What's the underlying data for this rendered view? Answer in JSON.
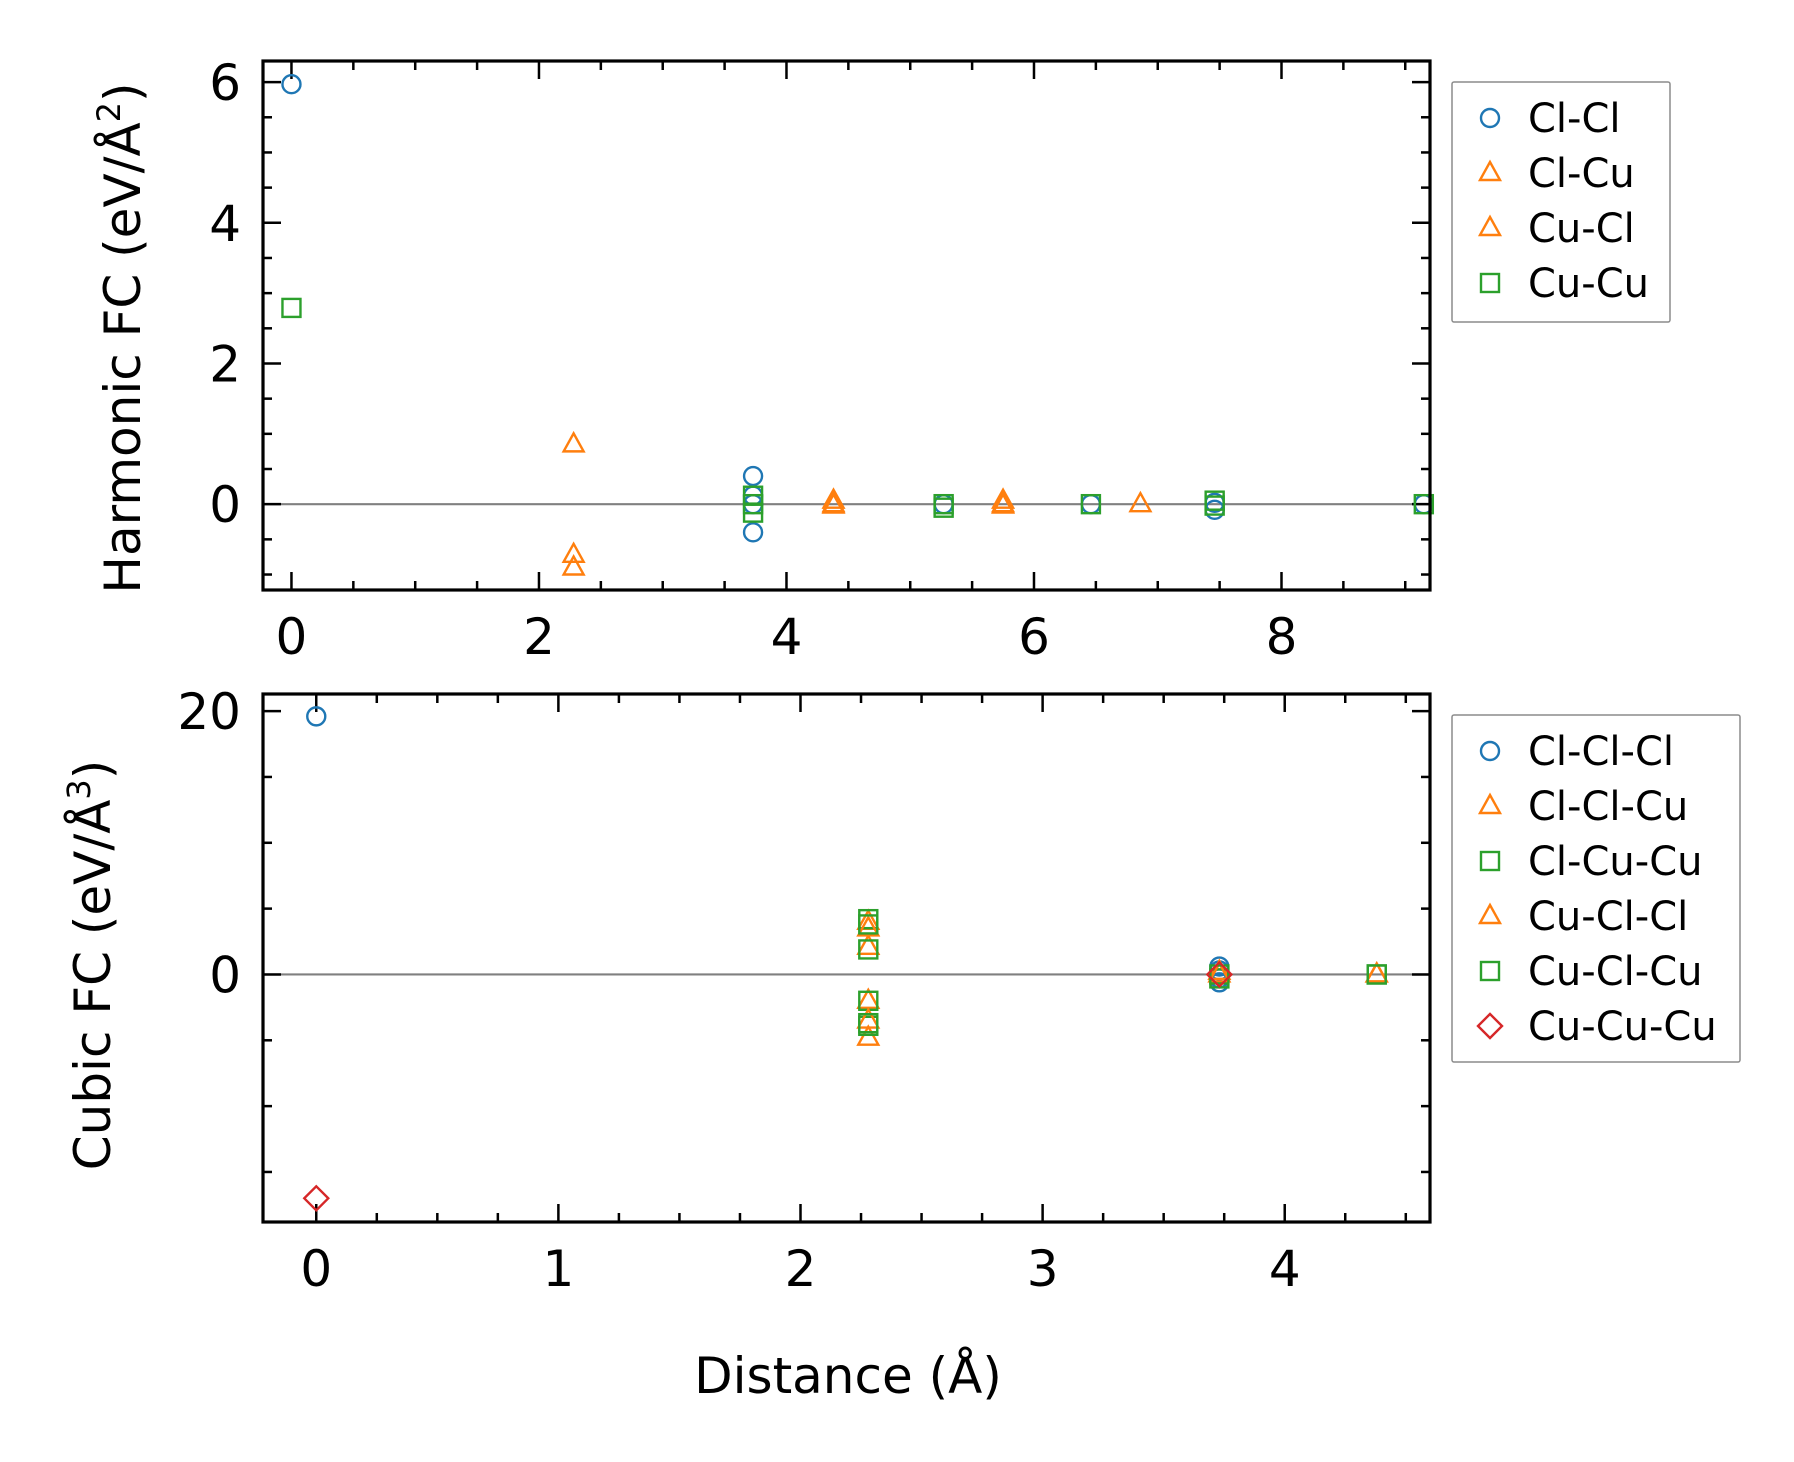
{
  "chart_data": [
    {
      "type": "scatter",
      "panel": "top",
      "title": "",
      "xlabel": "",
      "ylabel": "Harmonic FC (eV/Å²)",
      "ylabel_main": "Harmonic FC (eV/Å",
      "ylabel_sup": "2",
      "ylabel_end": ")",
      "xlim": [
        -0.23,
        9.2
      ],
      "ylim": [
        -1.22,
        6.3
      ],
      "xticks": [
        0,
        2,
        4,
        6,
        8
      ],
      "xtick_labels": [
        "0",
        "2",
        "4",
        "6",
        "8"
      ],
      "xminor_step": 0.5,
      "yticks": [
        0,
        2,
        4,
        6
      ],
      "ytick_labels": [
        "0",
        "2",
        "4",
        "6"
      ],
      "yminor_step": 0.5,
      "zero_line": true,
      "legend_position": "outside upper-right",
      "series": [
        {
          "name": "Cl-Cl",
          "marker": "circle",
          "color": "#1f77b4",
          "x": [
            0,
            3.73,
            3.73,
            3.73,
            3.73,
            5.27,
            6.46,
            7.46,
            7.46,
            9.15
          ],
          "y": [
            5.97,
            0.4,
            0.12,
            0.0,
            -0.4,
            0.0,
            0.0,
            0.02,
            -0.08,
            0.0
          ]
        },
        {
          "name": "Cl-Cu",
          "marker": "triangle",
          "color": "#ff7f0e",
          "x": [
            2.28,
            2.28,
            4.38,
            4.38,
            5.75,
            5.75,
            6.86
          ],
          "y": [
            0.85,
            -0.72,
            0.05,
            -0.02,
            0.05,
            -0.02,
            0.0
          ]
        },
        {
          "name": "Cu-Cl",
          "marker": "triangle",
          "color": "#ff7f0e",
          "x": [
            2.28,
            4.38,
            5.75
          ],
          "y": [
            -0.9,
            0.0,
            0.0
          ]
        },
        {
          "name": "Cu-Cu",
          "marker": "square",
          "color": "#2ca02c",
          "x": [
            0,
            3.73,
            3.73,
            3.73,
            5.27,
            5.27,
            6.46,
            7.46,
            7.46,
            9.15
          ],
          "y": [
            2.79,
            0.12,
            0.0,
            -0.12,
            0.0,
            -0.05,
            0.0,
            0.05,
            -0.02,
            0.0
          ]
        }
      ]
    },
    {
      "type": "scatter",
      "panel": "bottom",
      "title": "",
      "xlabel": "Distance (Å)",
      "ylabel": "Cubic FC (eV/Å³)",
      "ylabel_main": "Cubic FC (eV/Å",
      "ylabel_sup": "3",
      "ylabel_end": ")",
      "xlim": [
        -0.22,
        4.6
      ],
      "ylim": [
        -18.8,
        21.3
      ],
      "xticks": [
        0,
        1,
        2,
        3,
        4
      ],
      "xtick_labels": [
        "0",
        "1",
        "2",
        "3",
        "4"
      ],
      "xminor_step": 0.25,
      "yticks": [
        0,
        20
      ],
      "ytick_labels": [
        "0",
        "20"
      ],
      "yminor_step": 5,
      "zero_line": true,
      "legend_position": "outside upper-right",
      "series": [
        {
          "name": "Cl-Cl-Cl",
          "marker": "circle",
          "color": "#1f77b4",
          "x": [
            0,
            3.73,
            3.73,
            3.73,
            3.73
          ],
          "y": [
            19.6,
            0.6,
            0.3,
            -0.3,
            -0.6
          ]
        },
        {
          "name": "Cl-Cl-Cu",
          "marker": "triangle",
          "color": "#ff7f0e",
          "x": [
            2.28,
            2.28,
            2.28,
            2.28,
            3.73,
            4.38
          ],
          "y": [
            4.0,
            2.1,
            -2.0,
            -4.8,
            0.2,
            0.0
          ]
        },
        {
          "name": "Cl-Cu-Cu",
          "marker": "square",
          "color": "#2ca02c",
          "x": [
            2.28,
            2.28,
            2.28,
            2.28,
            3.73,
            4.38
          ],
          "y": [
            4.2,
            1.9,
            -2.0,
            -3.9,
            -0.3,
            0.0
          ]
        },
        {
          "name": "Cu-Cl-Cl",
          "marker": "triangle",
          "color": "#ff7f0e",
          "x": [
            2.28,
            2.28,
            3.73,
            4.38
          ],
          "y": [
            3.5,
            -3.5,
            0.0,
            0.0
          ]
        },
        {
          "name": "Cu-Cl-Cu",
          "marker": "square",
          "color": "#2ca02c",
          "x": [
            2.28,
            2.28,
            3.73,
            4.38
          ],
          "y": [
            3.8,
            -3.7,
            0.0,
            0.0
          ]
        },
        {
          "name": "Cu-Cu-Cu",
          "marker": "diamond",
          "color": "#d62728",
          "x": [
            0,
            3.73
          ],
          "y": [
            -17.0,
            0.0
          ]
        }
      ]
    }
  ]
}
